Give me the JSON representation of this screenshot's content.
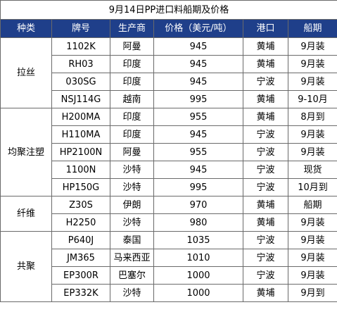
{
  "title": "9月14日PP进口料船期及价格",
  "columns": [
    "种类",
    "牌号",
    "生产商",
    "价格（美元/吨）",
    "港口",
    "船期"
  ],
  "groups": [
    {
      "category": "拉丝",
      "rows": [
        {
          "grade": "1102K",
          "producer": "阿曼",
          "price": "945",
          "port": "黄埔",
          "shipment": "9月装"
        },
        {
          "grade": "RH03",
          "producer": "印度",
          "price": "945",
          "port": "黄埔",
          "shipment": "9月装"
        },
        {
          "grade": "030SG",
          "producer": "印度",
          "price": "945",
          "port": "宁波",
          "shipment": "9月装"
        },
        {
          "grade": "NSJ114G",
          "producer": "越南",
          "price": "995",
          "port": "黄埔",
          "shipment": "9-10月"
        }
      ]
    },
    {
      "category": "均聚注塑",
      "rows": [
        {
          "grade": "H200MA",
          "producer": "印度",
          "price": "955",
          "port": "黄埔",
          "shipment": "8月到"
        },
        {
          "grade": "H110MA",
          "producer": "印度",
          "price": "945",
          "port": "宁波",
          "shipment": "9月装"
        },
        {
          "grade": "HP2100N",
          "producer": "阿曼",
          "price": "955",
          "port": "宁波",
          "shipment": "9月装"
        },
        {
          "grade": "1100N",
          "producer": "沙特",
          "price": "945",
          "port": "宁波",
          "shipment": "现货"
        },
        {
          "grade": "HP150G",
          "producer": "沙特",
          "price": "995",
          "port": "宁波",
          "shipment": "10月到"
        }
      ]
    },
    {
      "category": "纤维",
      "rows": [
        {
          "grade": "Z30S",
          "producer": "伊朗",
          "price": "970",
          "port": "黄埔",
          "shipment": "船期"
        },
        {
          "grade": "H2250",
          "producer": "沙特",
          "price": "980",
          "port": "黄埔",
          "shipment": "9月装"
        }
      ]
    },
    {
      "category": "共聚",
      "rows": [
        {
          "grade": "P640J",
          "producer": "泰国",
          "price": "1035",
          "port": "宁波",
          "shipment": "9月装"
        },
        {
          "grade": "JM365",
          "producer": "马来西亚",
          "price": "1010",
          "port": "宁波",
          "shipment": "9月装"
        },
        {
          "grade": "EP300R",
          "producer": "巴塞尔",
          "price": "1000",
          "port": "宁波",
          "shipment": "9月装"
        },
        {
          "grade": "EP332K",
          "producer": "沙特",
          "price": "1000",
          "port": "黄埔",
          "shipment": "9月到"
        }
      ]
    }
  ],
  "colors": {
    "header_bg": "#1f3f8a",
    "header_text": "#ffffff",
    "border": "#6a6a6a"
  }
}
